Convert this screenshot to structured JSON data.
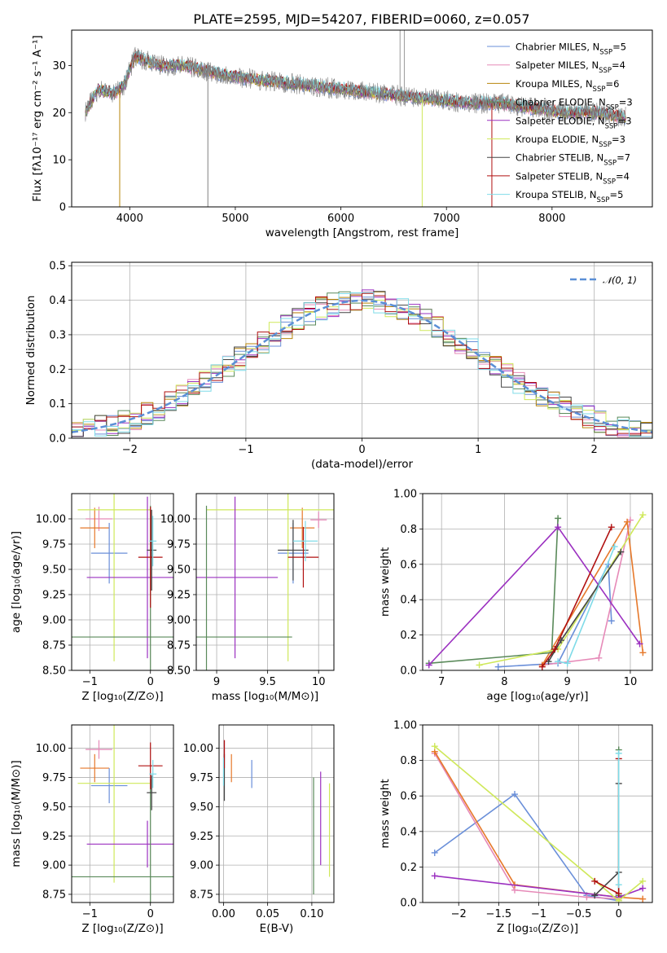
{
  "figure_title": "PLATE=2595, MJD=54207, FIBERID=0060, z=0.057",
  "chart_data": [
    {
      "id": "spectrum",
      "type": "line",
      "xlabel": "wavelength [Angstrom, rest frame]",
      "ylabel": "Flux [fλ10⁻¹⁷ erg cm⁻² s⁻¹ A⁻¹]",
      "xlim": [
        3450,
        8950
      ],
      "ylim": [
        0,
        37.5
      ],
      "xticks": [
        4000,
        5000,
        6000,
        7000,
        8000
      ],
      "yticks": [
        0,
        10,
        20,
        30
      ],
      "grid": false,
      "legend_position": "top-right",
      "series": [
        {
          "name": "Chabrier MILES, N",
          "sub": "SSP",
          "suffix": "=5",
          "color": "#6a8fd9"
        },
        {
          "name": "Salpeter MILES, N",
          "sub": "SSP",
          "suffix": "=4",
          "color": "#e68ab8"
        },
        {
          "name": "Kroupa MILES, N",
          "sub": "SSP",
          "suffix": "=6",
          "color": "#b8860b"
        },
        {
          "name": "Chabrier ELODIE, N",
          "sub": "SSP",
          "suffix": "=3",
          "color": "#5a8a5a"
        },
        {
          "name": "Salpeter ELODIE, N",
          "sub": "SSP",
          "suffix": "=3",
          "color": "#9b30c0"
        },
        {
          "name": "Kroupa ELODIE, N",
          "sub": "SSP",
          "suffix": "=3",
          "color": "#cfe85a"
        },
        {
          "name": "Chabrier STELIB, N",
          "sub": "SSP",
          "suffix": "=7",
          "color": "#444444"
        },
        {
          "name": "Salpeter STELIB, N",
          "sub": "SSP",
          "suffix": "=4",
          "color": "#b01010"
        },
        {
          "name": "Kroupa STELIB, N",
          "sub": "SSP",
          "suffix": "=5",
          "color": "#7fdbe8"
        }
      ],
      "data_color": "#808080",
      "anchors_x": [
        3580,
        3700,
        3850,
        3950,
        4050,
        4150,
        4300,
        4500,
        4700,
        4900,
        5200,
        5600,
        6000,
        6400,
        6800,
        7200,
        7500,
        7800,
        8100,
        8400,
        8700
      ],
      "anchors_y": [
        20,
        25,
        24,
        26,
        32,
        31,
        30,
        30,
        29,
        28,
        27,
        26,
        25,
        24,
        23,
        22,
        22,
        21,
        20,
        20,
        19
      ]
    },
    {
      "id": "residuals",
      "type": "histogram",
      "xlabel": "(data-model)/error",
      "ylabel": "Normed distribution",
      "xlim": [
        -2.5,
        2.5
      ],
      "ylim": [
        0,
        0.51
      ],
      "xticks": [
        -2,
        -1,
        0,
        1,
        2
      ],
      "yticks": [
        0.0,
        0.1,
        0.2,
        0.3,
        0.4,
        0.5
      ],
      "grid": true,
      "legend_position": "top-right",
      "reference_label": "𝒩(0, 1)",
      "reference_color": "#5b8fd6"
    },
    {
      "id": "age-vs-Z",
      "type": "errorbar",
      "xlabel": "Z [log₁₀(Z/Z⊙)]",
      "ylabel": "age  [log₁₀(age/yr)]",
      "xlim": [
        -1.3,
        0.38
      ],
      "ylim": [
        8.5,
        10.25
      ],
      "xticks": [
        -1,
        0
      ],
      "yticks": [
        8.5,
        8.75,
        9.0,
        9.25,
        9.5,
        9.75,
        10.0
      ],
      "grid": true,
      "points": [
        {
          "x": -0.85,
          "y": 10.0,
          "xerr": 0.22,
          "yerr": 0.12,
          "color": "#e68ab8"
        },
        {
          "x": -0.92,
          "y": 9.91,
          "xerr": 0.24,
          "yerr": 0.2,
          "color": "#e6782a"
        },
        {
          "x": -0.68,
          "y": 9.66,
          "xerr": 0.3,
          "yerr": 0.3,
          "color": "#6a8fd9"
        },
        {
          "x": -0.6,
          "y": 10.09,
          "xerr": 0.6,
          "yerr": 1.5,
          "color": "#cfe85a"
        },
        {
          "x": -0.05,
          "y": 9.42,
          "xerr": 1.0,
          "yerr": 0.8,
          "color": "#9b30c0"
        },
        {
          "x": 0.0,
          "y": 8.83,
          "xerr": 1.3,
          "yerr": 1.3,
          "color": "#5a8a5a"
        },
        {
          "x": 0.02,
          "y": 9.69,
          "xerr": 0.08,
          "yerr": 0.4,
          "color": "#444444"
        },
        {
          "x": 0.0,
          "y": 9.62,
          "xerr": 0.2,
          "yerr": 0.5,
          "color": "#b01010"
        },
        {
          "x": 0.04,
          "y": 9.78,
          "xerr": 0.06,
          "yerr": 0.25,
          "color": "#7fdbe8"
        }
      ]
    },
    {
      "id": "age-vs-mass",
      "type": "errorbar",
      "xlabel": "mass [log₁₀(M/M⊙)]",
      "ylabel": "",
      "xlim": [
        8.8,
        10.15
      ],
      "ylim": [
        8.5,
        10.25
      ],
      "xticks": [
        9.0,
        9.5,
        10.0
      ],
      "yticks": [
        8.5,
        8.75,
        9.0,
        9.25,
        9.5,
        9.75,
        10.0
      ],
      "grid": true,
      "points": [
        {
          "x": 10.0,
          "y": 9.99,
          "xerr": 0.08,
          "yerr": 0.08,
          "color": "#e68ab8"
        },
        {
          "x": 9.84,
          "y": 9.91,
          "xerr": 0.12,
          "yerr": 0.2,
          "color": "#e6782a"
        },
        {
          "x": 9.75,
          "y": 9.66,
          "xerr": 0.15,
          "yerr": 0.3,
          "color": "#6a8fd9"
        },
        {
          "x": 9.7,
          "y": 10.09,
          "xerr": 0.8,
          "yerr": 1.5,
          "color": "#cfe85a"
        },
        {
          "x": 9.18,
          "y": 9.42,
          "xerr": 0.42,
          "yerr": 0.8,
          "color": "#9b30c0"
        },
        {
          "x": 8.9,
          "y": 8.83,
          "xerr": 0.84,
          "yerr": 1.3,
          "color": "#5a8a5a"
        },
        {
          "x": 9.75,
          "y": 9.69,
          "xerr": 0.15,
          "yerr": 0.3,
          "color": "#444444"
        },
        {
          "x": 9.85,
          "y": 9.62,
          "xerr": 0.15,
          "yerr": 0.3,
          "color": "#b01010"
        },
        {
          "x": 9.87,
          "y": 9.78,
          "xerr": 0.12,
          "yerr": 0.2,
          "color": "#7fdbe8"
        }
      ]
    },
    {
      "id": "weight-vs-age",
      "type": "line",
      "xlabel": "age  [log₁₀(age/yr)]",
      "ylabel": "mass weight",
      "xlim": [
        6.7,
        10.35
      ],
      "ylim": [
        0.0,
        1.0
      ],
      "xticks": [
        7,
        8,
        9,
        10
      ],
      "yticks": [
        0.0,
        0.2,
        0.4,
        0.6,
        0.8,
        1.0
      ],
      "grid": true,
      "series": [
        {
          "color": "#6a8fd9",
          "points": [
            [
              7.9,
              0.02
            ],
            [
              8.85,
              0.04
            ],
            [
              9.65,
              0.6
            ],
            [
              9.7,
              0.28
            ]
          ]
        },
        {
          "color": "#e68ab8",
          "points": [
            [
              8.6,
              0.03
            ],
            [
              9.5,
              0.07
            ],
            [
              10.0,
              0.85
            ]
          ]
        },
        {
          "color": "#e6782a",
          "points": [
            [
              8.6,
              0.03
            ],
            [
              9.95,
              0.84
            ],
            [
              10.2,
              0.1
            ]
          ]
        },
        {
          "color": "#5a8a5a",
          "points": [
            [
              6.8,
              0.04
            ],
            [
              8.75,
              0.1
            ],
            [
              8.85,
              0.86
            ]
          ]
        },
        {
          "color": "#9b30c0",
          "points": [
            [
              6.8,
              0.03
            ],
            [
              8.85,
              0.81
            ],
            [
              10.15,
              0.15
            ]
          ]
        },
        {
          "color": "#cfe85a",
          "points": [
            [
              7.6,
              0.03
            ],
            [
              8.85,
              0.12
            ],
            [
              10.2,
              0.88
            ]
          ]
        },
        {
          "color": "#444444",
          "points": [
            [
              8.7,
              0.05
            ],
            [
              8.9,
              0.17
            ],
            [
              9.85,
              0.67
            ]
          ]
        },
        {
          "color": "#b01010",
          "points": [
            [
              8.6,
              0.02
            ],
            [
              8.8,
              0.12
            ],
            [
              9.7,
              0.81
            ]
          ]
        },
        {
          "color": "#7fdbe8",
          "points": [
            [
              8.85,
              0.05
            ],
            [
              9.0,
              0.04
            ],
            [
              9.75,
              0.7
            ]
          ]
        }
      ]
    },
    {
      "id": "mass-vs-Z",
      "type": "errorbar",
      "xlabel": "Z [log₁₀(Z/Z⊙)]",
      "ylabel": "mass [log₁₀(M/M⊙)]",
      "xlim": [
        -1.3,
        0.38
      ],
      "ylim": [
        8.68,
        10.2
      ],
      "xticks": [
        -1,
        0
      ],
      "yticks": [
        8.75,
        9.0,
        9.25,
        9.5,
        9.75,
        10.0
      ],
      "grid": true,
      "points": [
        {
          "x": -0.85,
          "y": 9.99,
          "xerr": 0.22,
          "yerr": 0.08,
          "color": "#e68ab8"
        },
        {
          "x": -0.92,
          "y": 9.83,
          "xerr": 0.24,
          "yerr": 0.12,
          "color": "#e6782a"
        },
        {
          "x": -0.68,
          "y": 9.68,
          "xerr": 0.3,
          "yerr": 0.15,
          "color": "#6a8fd9"
        },
        {
          "x": -0.6,
          "y": 9.7,
          "xerr": 0.6,
          "yerr": 0.85,
          "color": "#cfe85a"
        },
        {
          "x": -0.05,
          "y": 9.18,
          "xerr": 1.0,
          "yerr": 0.2,
          "color": "#9b30c0"
        },
        {
          "x": 0.0,
          "y": 8.9,
          "xerr": 1.3,
          "yerr": 0.84,
          "color": "#5a8a5a"
        },
        {
          "x": 0.02,
          "y": 9.62,
          "xerr": 0.08,
          "yerr": 0.15,
          "color": "#444444"
        },
        {
          "x": 0.0,
          "y": 9.85,
          "xerr": 0.2,
          "yerr": 0.2,
          "color": "#b01010"
        },
        {
          "x": 0.04,
          "y": 9.78,
          "xerr": 0.06,
          "yerr": 0.12,
          "color": "#7fdbe8"
        }
      ]
    },
    {
      "id": "mass-vs-ebv",
      "type": "errorbar",
      "xlabel": "E(B-V)",
      "ylabel": "",
      "xlim": [
        -0.005,
        0.125
      ],
      "ylim": [
        8.68,
        10.2
      ],
      "xticks": [
        0.0,
        0.05,
        0.1
      ],
      "xtick_labels": [
        "0.00",
        "0.05",
        "0.10"
      ],
      "yticks": [
        8.75,
        9.0,
        9.25,
        9.5,
        9.75,
        10.0
      ],
      "grid": true,
      "points": [
        {
          "x": 0.001,
          "y": 9.99,
          "xerr": 0,
          "yerr": 0.08,
          "color": "#e68ab8"
        },
        {
          "x": 0.009,
          "y": 9.83,
          "xerr": 0,
          "yerr": 0.12,
          "color": "#e6782a"
        },
        {
          "x": 0.032,
          "y": 9.78,
          "xerr": 0,
          "yerr": 0.12,
          "color": "#6a8fd9"
        },
        {
          "x": 0.12,
          "y": 9.3,
          "xerr": 0,
          "yerr": 0.4,
          "color": "#cfe85a"
        },
        {
          "x": 0.11,
          "y": 9.4,
          "xerr": 0,
          "yerr": 0.4,
          "color": "#9b30c0"
        },
        {
          "x": 0.102,
          "y": 9.25,
          "xerr": 0,
          "yerr": 0.5,
          "color": "#5a8a5a"
        },
        {
          "x": 0.001,
          "y": 9.75,
          "xerr": 0,
          "yerr": 0.2,
          "color": "#444444"
        },
        {
          "x": 0.001,
          "y": 9.95,
          "xerr": 0,
          "yerr": 0.12,
          "color": "#b01010"
        },
        {
          "x": 0.0,
          "y": 9.8,
          "xerr": 0,
          "yerr": 0.12,
          "color": "#7fdbe8"
        }
      ]
    },
    {
      "id": "weight-vs-Z",
      "type": "line",
      "xlabel": "Z [log₁₀(Z/Z⊙)]",
      "ylabel": "mass weight",
      "xlim": [
        -2.45,
        0.42
      ],
      "ylim": [
        0.0,
        1.0
      ],
      "xticks": [
        -2.0,
        -1.5,
        -1.0,
        -0.5,
        0.0
      ],
      "yticks": [
        0.0,
        0.2,
        0.4,
        0.6,
        0.8,
        1.0
      ],
      "grid": true,
      "series": [
        {
          "color": "#6a8fd9",
          "points": [
            [
              -2.3,
              0.28
            ],
            [
              -1.3,
              0.61
            ],
            [
              -0.4,
              0.04
            ],
            [
              0.0,
              0.01
            ]
          ]
        },
        {
          "color": "#e68ab8",
          "points": [
            [
              -2.3,
              0.84
            ],
            [
              -1.3,
              0.07
            ],
            [
              -0.4,
              0.03
            ],
            [
              0.0,
              0.02
            ]
          ]
        },
        {
          "color": "#e6782a",
          "points": [
            [
              -2.3,
              0.85
            ],
            [
              -1.3,
              0.1
            ],
            [
              0.0,
              0.03
            ],
            [
              0.3,
              0.02
            ]
          ]
        },
        {
          "color": "#5a8a5a",
          "points": [
            [
              0.0,
              0.04
            ],
            [
              0.0,
              0.86
            ]
          ]
        },
        {
          "color": "#9b30c0",
          "points": [
            [
              -2.3,
              0.15
            ],
            [
              0.0,
              0.03
            ],
            [
              0.3,
              0.08
            ]
          ]
        },
        {
          "color": "#cfe85a",
          "points": [
            [
              -2.3,
              0.88
            ],
            [
              0.0,
              0.01
            ],
            [
              0.3,
              0.12
            ]
          ]
        },
        {
          "color": "#444444",
          "points": [
            [
              -0.3,
              0.04
            ],
            [
              0.0,
              0.17
            ],
            [
              0.0,
              0.67
            ]
          ]
        },
        {
          "color": "#b01010",
          "points": [
            [
              -0.3,
              0.12
            ],
            [
              0.0,
              0.05
            ],
            [
              0.0,
              0.81
            ]
          ]
        },
        {
          "color": "#7fdbe8",
          "points": [
            [
              0.0,
              0.1
            ],
            [
              0.0,
              0.84
            ]
          ]
        }
      ]
    }
  ]
}
